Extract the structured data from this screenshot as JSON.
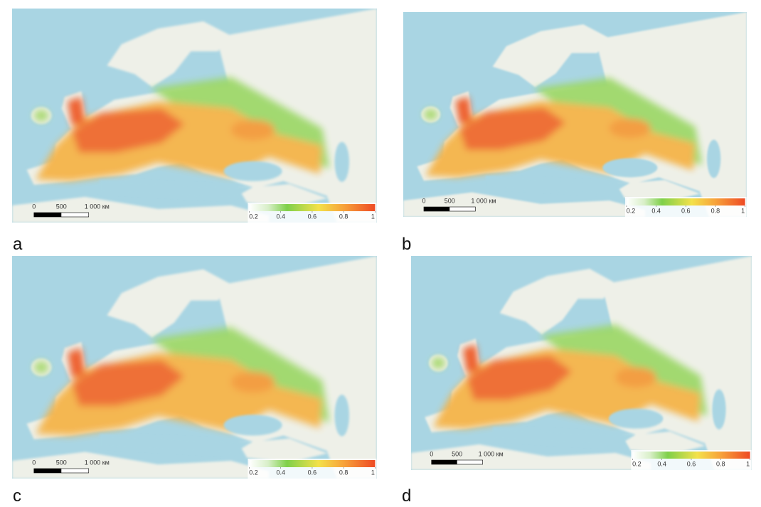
{
  "panels": [
    {
      "label": "a",
      "scale_bar": [
        "0",
        "500",
        "1 000 км"
      ],
      "colorbar": {
        "lim": [
          0.2,
          1
        ],
        "ticks": [
          0.2,
          0.4,
          0.6,
          0.8,
          1
        ]
      }
    },
    {
      "label": "b",
      "scale_bar": [
        "0",
        "500",
        "1 000 км"
      ],
      "colorbar": {
        "lim": [
          0.2,
          1
        ],
        "ticks": [
          0.2,
          0.4,
          0.6,
          0.8,
          1
        ]
      }
    },
    {
      "label": "c",
      "scale_bar": [
        "0",
        "500",
        "1 000 км"
      ],
      "colorbar": {
        "lim": [
          0.2,
          1
        ],
        "ticks": [
          0.2,
          0.4,
          0.6,
          0.8,
          1
        ]
      }
    },
    {
      "label": "d",
      "scale_bar": [
        "0",
        "500",
        "1 000 км"
      ],
      "colorbar": {
        "lim": [
          0.2,
          1
        ],
        "ticks": [
          0.2,
          0.4,
          0.6,
          0.8,
          1
        ]
      }
    }
  ]
}
